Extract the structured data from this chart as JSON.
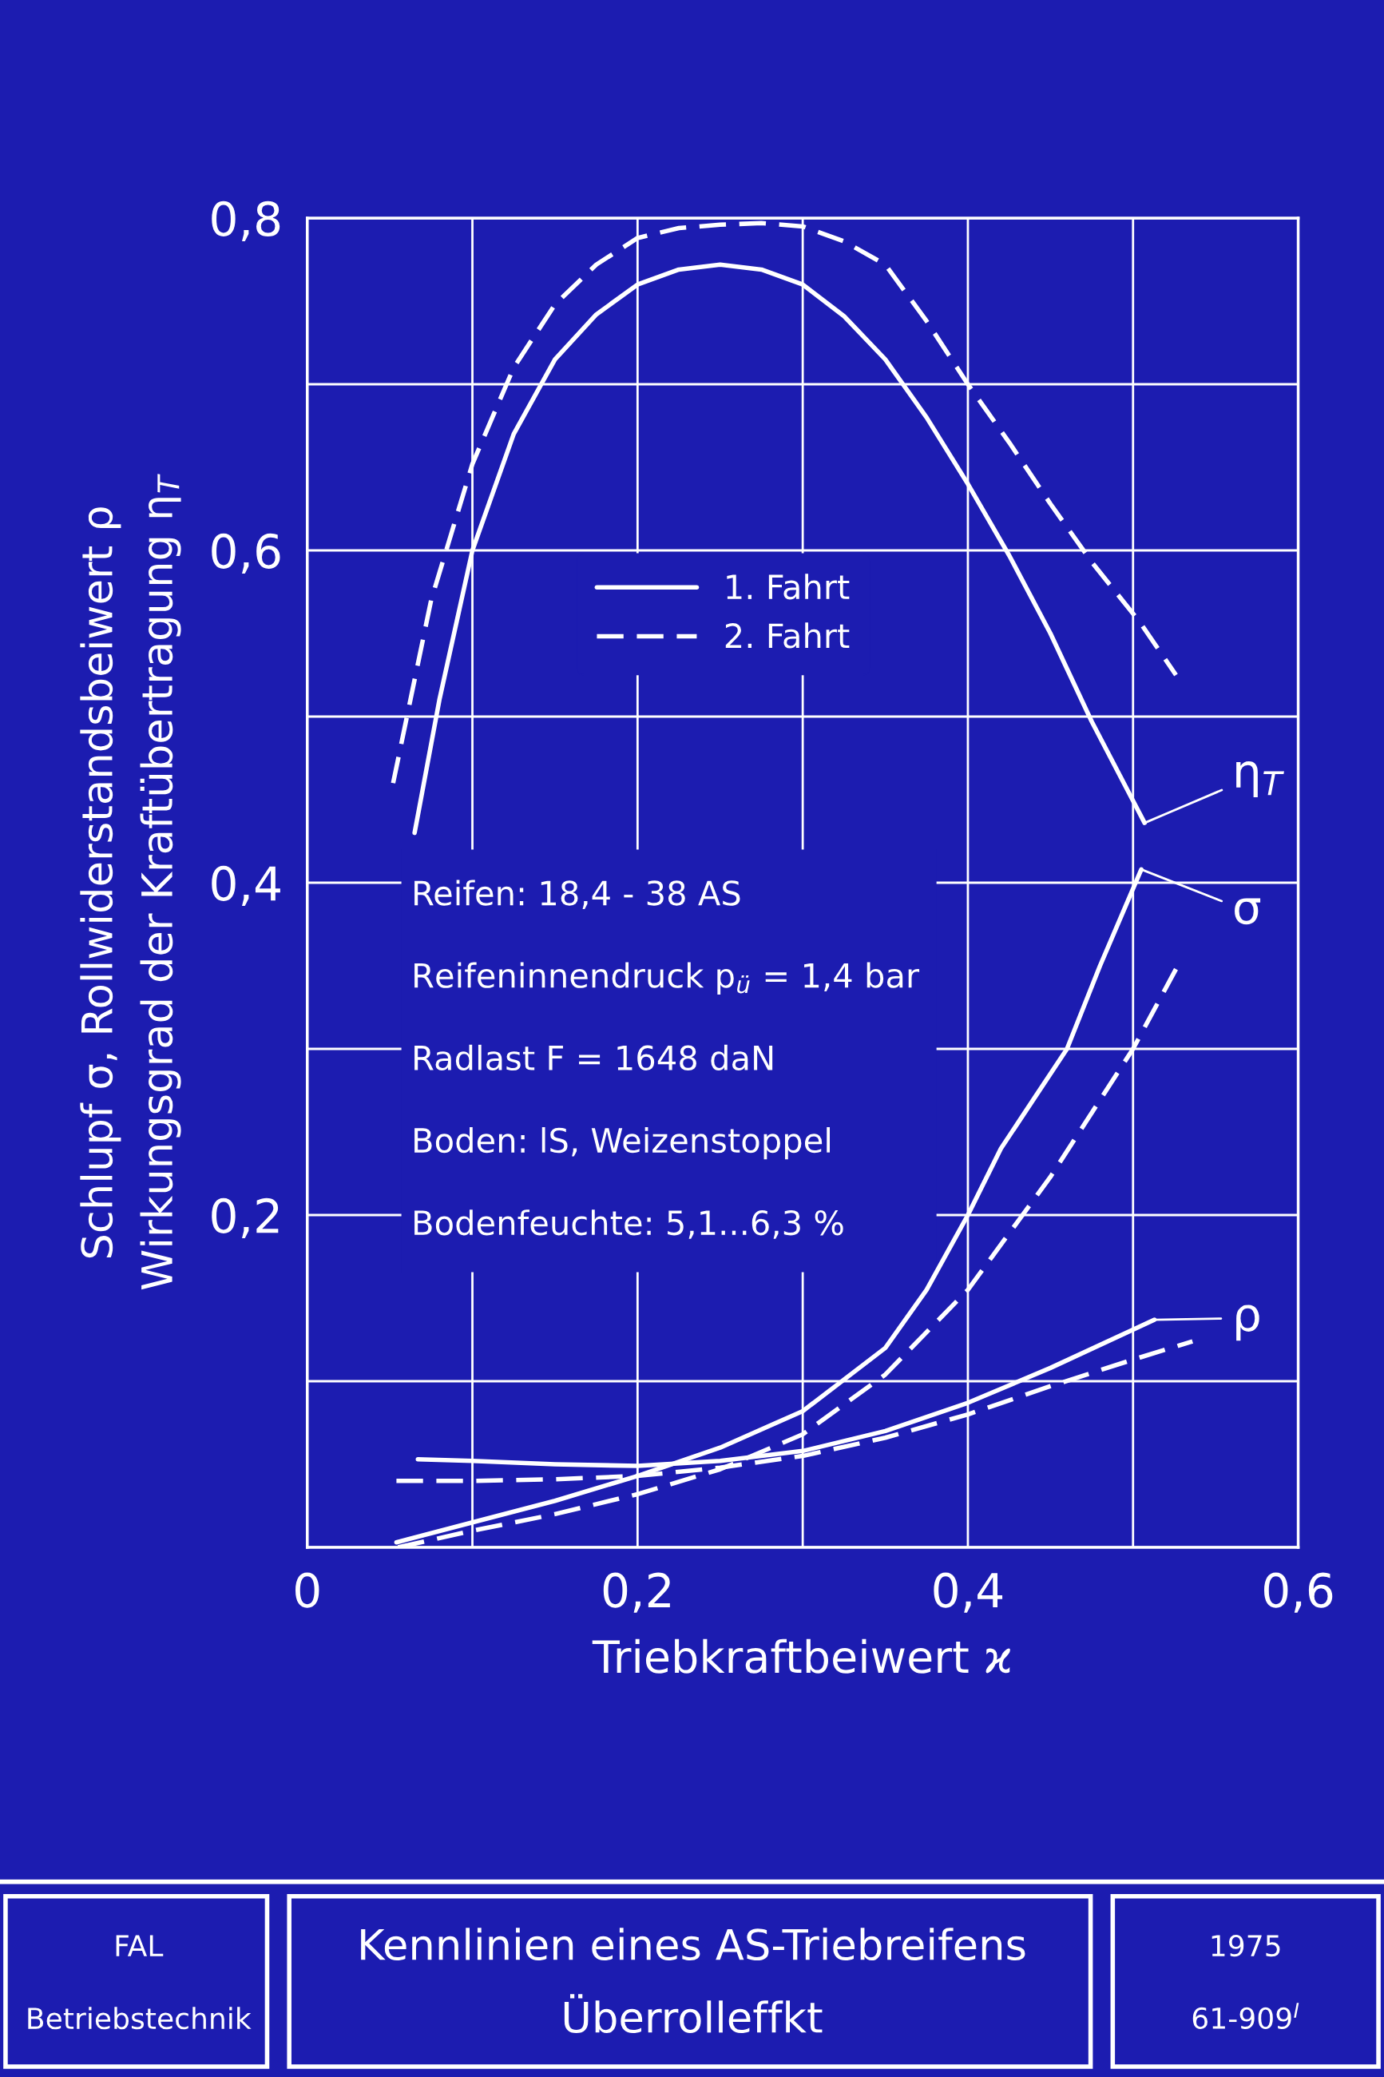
{
  "chart_data": {
    "type": "line",
    "title": "Kennlinien eines AS-Triebreifens",
    "subtitle": "Überrolleffkt",
    "xlabel": "Triebkraftbeiwert ϰ",
    "ylabel": "Schlupf σ, Rollwiderstandsbeiwert ρ\nWirkungsgrad der Kraftübertragung η$_{T}$",
    "series": [
      {
        "name": "1. Fahrt",
        "color": "#ffffff",
        "line_style": "solid",
        "x": [
          0.065,
          0.08,
          0.1,
          0.125,
          0.15,
          0.175,
          0.2,
          0.225,
          0.25,
          0.275,
          0.3,
          0.325,
          0.35,
          0.375,
          0.4,
          0.425,
          0.45,
          0.475,
          0.507
        ],
        "values": [
          0.43,
          0.51,
          0.6,
          0.67,
          0.715,
          0.742,
          0.76,
          0.769,
          0.772,
          0.769,
          0.76,
          0.741,
          0.715,
          0.68,
          0.64,
          0.597,
          0.55,
          0.497,
          0.436
        ]
      },
      {
        "name": "2. Fahrt",
        "color": "#ffffff",
        "line_style": "dashed",
        "x": [
          0.052,
          0.075,
          0.1,
          0.125,
          0.15,
          0.175,
          0.2,
          0.225,
          0.25,
          0.275,
          0.3,
          0.325,
          0.35,
          0.375,
          0.4,
          0.425,
          0.45,
          0.475,
          0.504,
          0.526
        ],
        "values": [
          0.46,
          0.57,
          0.652,
          0.71,
          0.748,
          0.772,
          0.788,
          0.794,
          0.796,
          0.797,
          0.795,
          0.786,
          0.772,
          0.738,
          0.7,
          0.665,
          0.628,
          0.593,
          0.557,
          0.525
        ]
      },
      {
        "color": "#ffffff",
        "line_style": "solid",
        "x": [
          0.054,
          0.1,
          0.15,
          0.2,
          0.25,
          0.3,
          0.35,
          0.375,
          0.4,
          0.42,
          0.44,
          0.46,
          0.48,
          0.505
        ],
        "values": [
          0.003,
          0.015,
          0.028,
          0.043,
          0.06,
          0.082,
          0.12,
          0.155,
          0.2,
          0.24,
          0.27,
          0.3,
          0.35,
          0.408
        ]
      },
      {
        "color": "#ffffff",
        "line_style": "dashed",
        "x": [
          0.055,
          0.1,
          0.15,
          0.2,
          0.25,
          0.3,
          0.35,
          0.4,
          0.45,
          0.5,
          0.526
        ],
        "values": [
          0.0,
          0.01,
          0.02,
          0.032,
          0.047,
          0.068,
          0.104,
          0.155,
          0.223,
          0.3,
          0.348
        ]
      },
      {
        "color": "#ffffff",
        "line_style": "solid",
        "x": [
          0.067,
          0.1,
          0.15,
          0.2,
          0.25,
          0.3,
          0.35,
          0.4,
          0.45,
          0.513
        ],
        "values": [
          0.053,
          0.052,
          0.05,
          0.049,
          0.052,
          0.058,
          0.07,
          0.087,
          0.108,
          0.137
        ]
      },
      {
        "color": "#ffffff",
        "line_style": "dashed",
        "x": [
          0.054,
          0.1,
          0.15,
          0.2,
          0.25,
          0.3,
          0.35,
          0.4,
          0.45,
          0.5,
          0.536
        ],
        "values": [
          0.04,
          0.04,
          0.041,
          0.043,
          0.048,
          0.055,
          0.066,
          0.08,
          0.097,
          0.113,
          0.124
        ]
      }
    ],
    "xlim": [
      0,
      0.6
    ],
    "xticks": [
      0,
      {
        "value": 0.1,
        "label": null
      },
      {
        "value": 0.2,
        "label": "0,2"
      },
      {
        "value": 0.3,
        "label": null
      },
      {
        "value": 0.4,
        "label": "0,4"
      },
      {
        "value": 0.5,
        "label": null
      },
      {
        "value": 0.6,
        "label": "0,6"
      }
    ],
    "ylim": [
      0,
      0.8
    ],
    "yticks": [
      {
        "value": 0,
        "label": null
      },
      {
        "value": 0.1,
        "label": null
      },
      {
        "value": 0.2,
        "label": "0,2"
      },
      {
        "value": 0.3,
        "label": null
      },
      {
        "value": 0.4,
        "label": "0,4"
      },
      {
        "value": 0.5,
        "label": null
      },
      {
        "value": 0.6,
        "label": "0,6"
      },
      {
        "value": 0.7,
        "label": null
      },
      {
        "value": 0.8,
        "label": "0,8"
      }
    ],
    "grid": true,
    "legend": "upper center",
    "annotations": [
      {
        "text": "η$_{T}$",
        "x": 0.507,
        "y": 0.436
      },
      {
        "text": "σ",
        "x": 0.505,
        "y": 0.408
      },
      {
        "text": "ρ",
        "x": 0.513,
        "y": 0.137
      },
      "Reifen: 18,4 - 38 AS",
      "Reifeninnendruck p$_{ü}$ = 1,4 bar",
      "Radlast F = 1648 daN",
      "Boden: lS, Weizenstoppel",
      "Bodenfeuchte: 5,1...6,3 %",
      "FAL",
      "Betriebstechnik",
      "1975",
      "61-909$^{I}$"
    ]
  }
}
